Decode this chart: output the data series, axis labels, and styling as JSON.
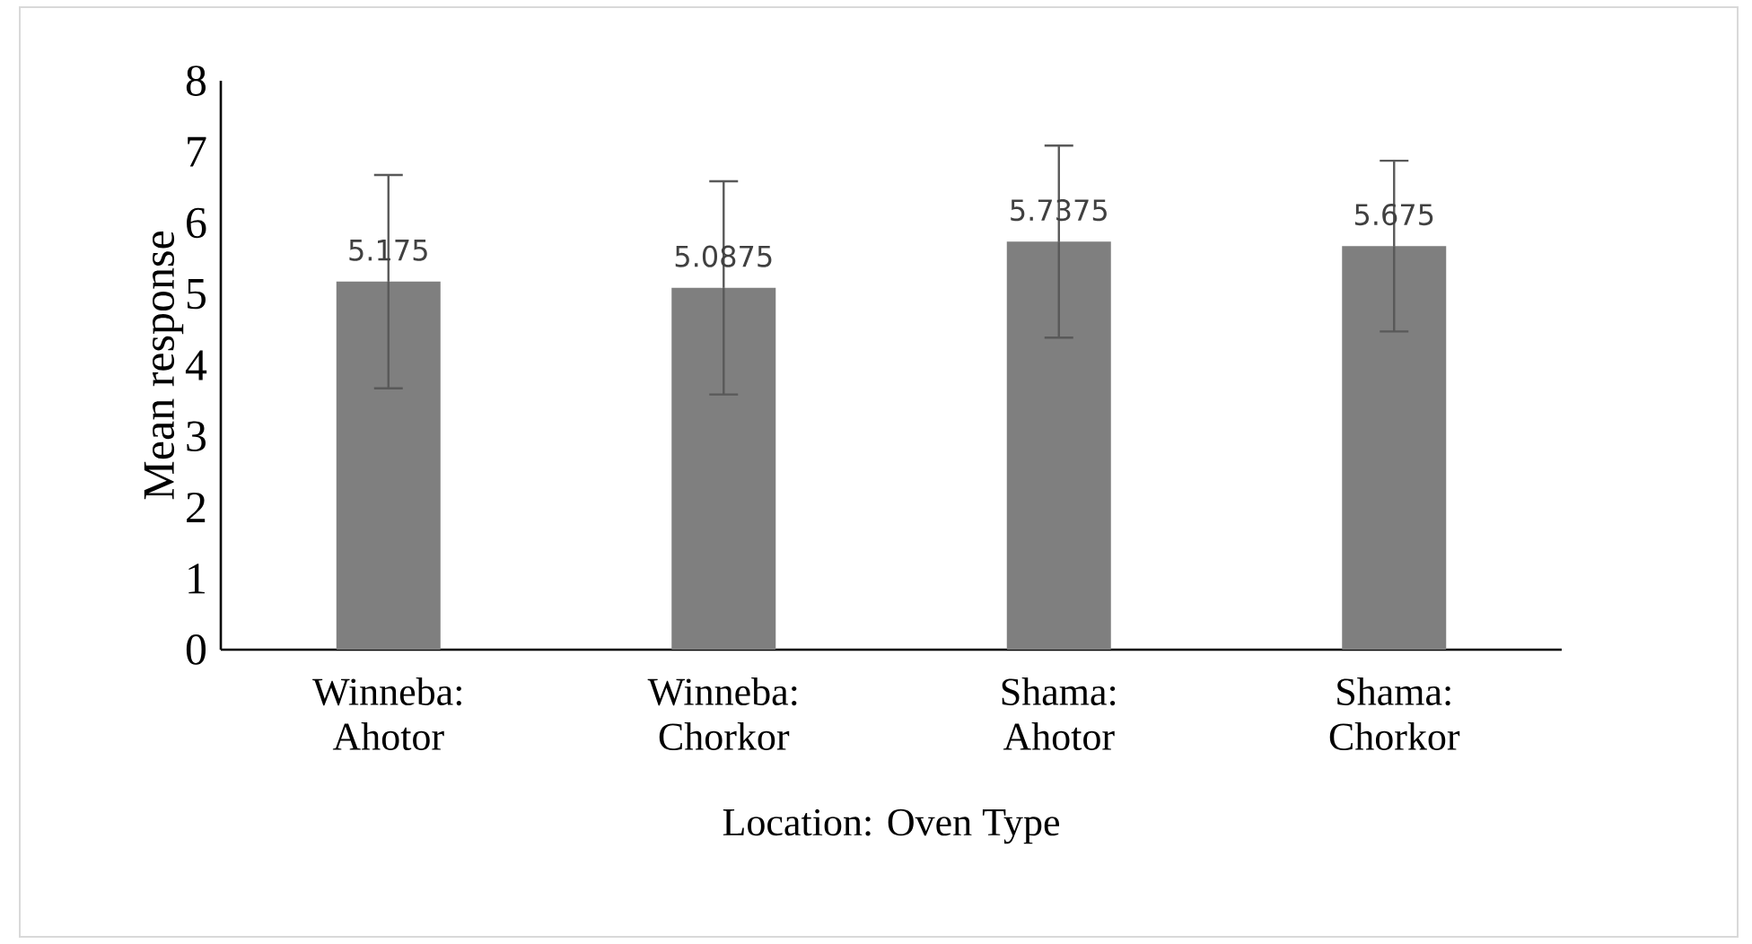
{
  "chart_data": {
    "type": "bar",
    "categories": [
      "Winneba: Ahotor",
      "Winneba: Chorkor",
      "Shama: Ahotor",
      "Shama: Chorkor"
    ],
    "values": [
      5.175,
      5.0875,
      5.7375,
      5.675
    ],
    "errors": [
      1.5,
      1.5,
      1.35,
      1.2
    ],
    "color": "#7f7f7f",
    "data_labels": true,
    "xlabel": "Location: Oven Type",
    "ylabel": "Mean response",
    "ylim": [
      0,
      8
    ],
    "yticks": [
      0,
      1,
      2,
      3,
      4,
      5,
      6,
      7,
      8
    ]
  }
}
